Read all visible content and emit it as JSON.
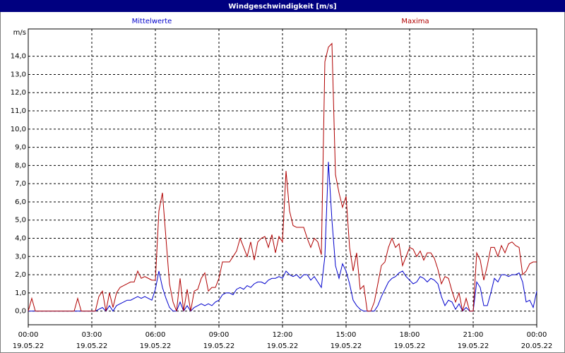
{
  "chart_data": {
    "type": "line",
    "title": "Windgeschwindigkeit [m/s]",
    "y_label": "m/s",
    "xlim": [
      0,
      1440
    ],
    "ylim": [
      -0.75,
      15.5
    ],
    "grid": true,
    "xticks": [
      {
        "value": 0,
        "label": "00:00"
      },
      {
        "value": 180,
        "label": "03:00"
      },
      {
        "value": 360,
        "label": "06:00"
      },
      {
        "value": 540,
        "label": "09:00"
      },
      {
        "value": 720,
        "label": "12:00"
      },
      {
        "value": 900,
        "label": "15:00"
      },
      {
        "value": 1080,
        "label": "18:00"
      },
      {
        "value": 1260,
        "label": "21:00"
      },
      {
        "value": 1440,
        "label": "00:00"
      }
    ],
    "xtick_dates": [
      "19.05.22",
      "19.05.22",
      "19.05.22",
      "19.05.22",
      "19.05.22",
      "19.05.22",
      "19.05.22",
      "19.05.22",
      "20.05.22"
    ],
    "yticks": [
      {
        "value": 0,
        "label": "0,0"
      },
      {
        "value": 1,
        "label": "1,0"
      },
      {
        "value": 2,
        "label": "2,0"
      },
      {
        "value": 3,
        "label": "3,0"
      },
      {
        "value": 4,
        "label": "4,0"
      },
      {
        "value": 5,
        "label": "5,0"
      },
      {
        "value": 6,
        "label": "6,0"
      },
      {
        "value": 7,
        "label": "7,0"
      },
      {
        "value": 8,
        "label": "8,0"
      },
      {
        "value": 9,
        "label": "9,0"
      },
      {
        "value": 10,
        "label": "10,0"
      },
      {
        "value": 11,
        "label": "11,0"
      },
      {
        "value": 12,
        "label": "12,0"
      },
      {
        "value": 13,
        "label": "13,0"
      },
      {
        "value": 14,
        "label": "14,0"
      }
    ],
    "x": [
      0,
      10,
      20,
      30,
      40,
      50,
      60,
      70,
      80,
      90,
      100,
      110,
      120,
      130,
      140,
      150,
      160,
      170,
      180,
      190,
      200,
      210,
      220,
      230,
      240,
      250,
      260,
      270,
      280,
      290,
      300,
      310,
      320,
      330,
      340,
      350,
      360,
      370,
      380,
      390,
      400,
      410,
      420,
      430,
      440,
      450,
      460,
      470,
      480,
      490,
      500,
      510,
      520,
      530,
      540,
      550,
      560,
      570,
      580,
      590,
      600,
      610,
      620,
      630,
      640,
      650,
      660,
      670,
      680,
      690,
      700,
      710,
      720,
      730,
      740,
      750,
      760,
      770,
      780,
      790,
      800,
      810,
      820,
      830,
      840,
      850,
      860,
      870,
      880,
      890,
      900,
      910,
      920,
      930,
      940,
      950,
      960,
      970,
      980,
      990,
      1000,
      1010,
      1020,
      1030,
      1040,
      1050,
      1060,
      1070,
      1080,
      1090,
      1100,
      1110,
      1120,
      1130,
      1140,
      1150,
      1160,
      1170,
      1180,
      1190,
      1200,
      1210,
      1220,
      1230,
      1240,
      1250,
      1260,
      1270,
      1280,
      1290,
      1300,
      1310,
      1320,
      1330,
      1340,
      1350,
      1360,
      1370,
      1380,
      1390,
      1400,
      1410,
      1420,
      1430,
      1440
    ],
    "series": [
      {
        "name": "Mittelwerte",
        "color": "#0000cc",
        "values": [
          0,
          0,
          0,
          0,
          0,
          0,
          0,
          0,
          0,
          0,
          0,
          0,
          0,
          0,
          0,
          0,
          0,
          0,
          0,
          0,
          0.1,
          0.2,
          0,
          0.3,
          0,
          0.3,
          0.4,
          0.5,
          0.6,
          0.6,
          0.7,
          0.8,
          0.7,
          0.8,
          0.7,
          0.6,
          1.2,
          2.2,
          1.3,
          0.7,
          0.2,
          0,
          0,
          0.5,
          0,
          0.3,
          0,
          0.2,
          0.3,
          0.4,
          0.3,
          0.4,
          0.3,
          0.5,
          0.6,
          0.9,
          1.0,
          1.0,
          0.9,
          1.2,
          1.3,
          1.2,
          1.4,
          1.3,
          1.5,
          1.6,
          1.6,
          1.5,
          1.7,
          1.8,
          1.8,
          1.9,
          1.8,
          2.2,
          2.0,
          1.9,
          2.0,
          1.8,
          2.0,
          2.0,
          1.7,
          1.9,
          1.6,
          1.3,
          3.0,
          8.2,
          5.0,
          2.5,
          1.8,
          2.6,
          2.2,
          1.5,
          0.6,
          0.3,
          0.1,
          0,
          0,
          0,
          0,
          0.3,
          0.8,
          1.2,
          1.6,
          1.8,
          1.9,
          2.1,
          2.2,
          1.9,
          1.7,
          1.5,
          1.6,
          1.9,
          1.8,
          1.6,
          1.8,
          1.7,
          1.5,
          0.8,
          0.3,
          0.6,
          0.5,
          0.1,
          0.4,
          0,
          0.2,
          0,
          0,
          1.6,
          1.3,
          0.3,
          0.3,
          1.0,
          1.8,
          1.6,
          2.0,
          2.0,
          1.9,
          2.0,
          2.0,
          2.1,
          1.6,
          0.5,
          0.6,
          0.2,
          1.1
        ]
      },
      {
        "name": "Maxima",
        "color": "#b00000",
        "values": [
          0,
          0.7,
          0,
          0,
          0,
          0,
          0,
          0,
          0,
          0,
          0,
          0,
          0,
          0,
          0.7,
          0,
          0,
          0,
          0,
          0,
          0.8,
          1.1,
          0,
          1.0,
          0.2,
          1.0,
          1.3,
          1.4,
          1.5,
          1.6,
          1.6,
          2.2,
          1.8,
          1.9,
          1.8,
          1.7,
          1.7,
          5.5,
          6.5,
          4.0,
          1.5,
          0.5,
          0,
          1.8,
          0,
          1.2,
          0,
          1.1,
          1.2,
          1.8,
          2.1,
          1.1,
          1.3,
          1.3,
          1.8,
          2.7,
          2.7,
          2.7,
          3.0,
          3.3,
          4.0,
          3.5,
          3.0,
          3.8,
          2.8,
          3.8,
          4.0,
          4.1,
          3.5,
          4.2,
          3.2,
          4.1,
          3.8,
          7.7,
          5.5,
          4.7,
          4.6,
          4.6,
          4.6,
          4.0,
          3.5,
          4.0,
          3.8,
          3.1,
          13.7,
          14.5,
          14.7,
          7.5,
          6.5,
          5.7,
          6.3,
          3.5,
          2.2,
          3.2,
          1.2,
          1.4,
          0,
          0,
          0.5,
          1.5,
          2.5,
          2.7,
          3.5,
          4.0,
          3.5,
          3.7,
          2.5,
          3.0,
          3.5,
          3.4,
          3.0,
          3.3,
          2.8,
          3.2,
          3.2,
          2.9,
          2.3,
          1.5,
          1.9,
          1.8,
          1.1,
          0.5,
          1.0,
          0,
          0.7,
          0,
          0,
          3.2,
          2.8,
          1.7,
          2.5,
          3.5,
          3.5,
          3.0,
          3.6,
          3.2,
          3.7,
          3.8,
          3.6,
          3.5,
          2.0,
          2.2,
          2.6,
          2.7,
          2.7
        ]
      }
    ]
  }
}
